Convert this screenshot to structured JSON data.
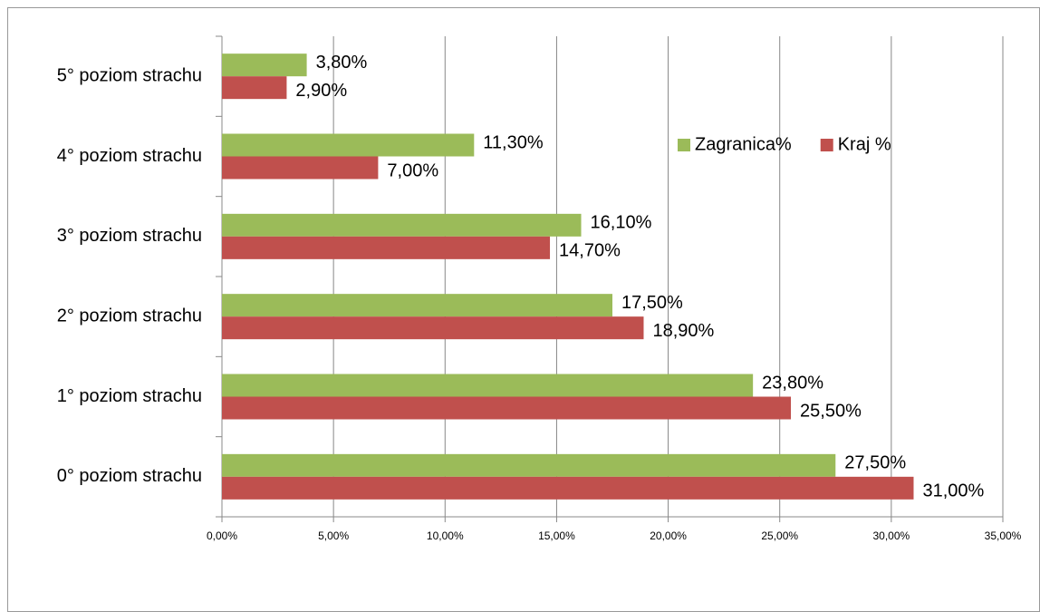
{
  "chart_data": {
    "type": "bar",
    "orientation": "horizontal",
    "categories": [
      "0° poziom strachu",
      "1° poziom strachu",
      "2° poziom strachu",
      "3° poziom strachu",
      "4° poziom strachu",
      "5° poziom strachu"
    ],
    "series": [
      {
        "name": "Zagranica%",
        "color": "#9bbb59",
        "values": [
          27.5,
          23.8,
          17.5,
          16.1,
          11.3,
          3.8
        ],
        "value_labels": [
          "27,50%",
          "23,80%",
          "17,50%",
          "16,10%",
          "11,30%",
          "3,80%"
        ]
      },
      {
        "name": "Kraj %",
        "color": "#c0504d",
        "values": [
          31.0,
          25.5,
          18.9,
          14.7,
          7.0,
          2.9
        ],
        "value_labels": [
          "31,00%",
          "25,50%",
          "18,90%",
          "14,70%",
          "7,00%",
          "2,90%"
        ]
      }
    ],
    "xlim": [
      0,
      35
    ],
    "xticks": [
      {
        "value": 0,
        "label": "0,00%"
      },
      {
        "value": 5,
        "label": "5,00%"
      },
      {
        "value": 10,
        "label": "10,00%"
      },
      {
        "value": 15,
        "label": "15,00%"
      },
      {
        "value": 20,
        "label": "20,00%"
      },
      {
        "value": 25,
        "label": "25,00%"
      },
      {
        "value": 30,
        "label": "30,00%"
      },
      {
        "value": 35,
        "label": "35,00%"
      }
    ],
    "grid": true,
    "legend": "upper right"
  }
}
